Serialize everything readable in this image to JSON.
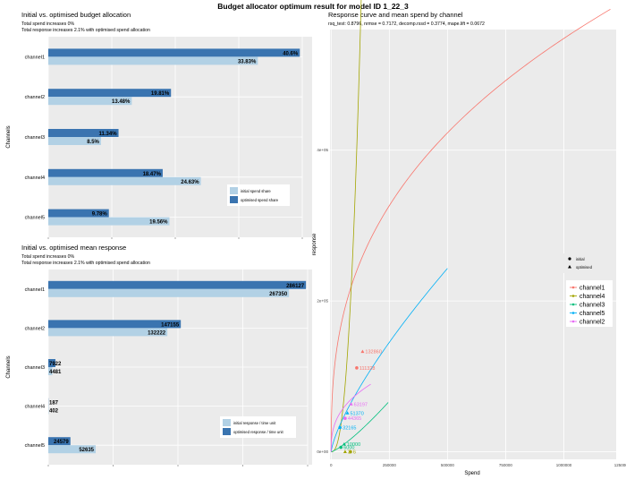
{
  "main_title": "Budget allocator optimum result for model ID 1_22_3",
  "chart_data": [
    {
      "type": "bar",
      "orientation": "horizontal",
      "title": "Initial vs. optimised budget allocation",
      "subtitle_lines": [
        "Total spend increases 0%",
        "Total response increases 2.1% with optimised spend allocation"
      ],
      "ylabel": "Channels",
      "categories": [
        "channel1",
        "channel2",
        "channel3",
        "channel4",
        "channel5"
      ],
      "series": [
        {
          "name": "initial spend share",
          "color": "#b2d1e5",
          "values": [
            33.83,
            13.48,
            8.5,
            24.63,
            19.56
          ],
          "labels": [
            "33.83%",
            "13.48%",
            "8.5%",
            "24.63%",
            "19.56%"
          ]
        },
        {
          "name": "optimised spend share",
          "color": "#3a74b0",
          "values": [
            40.6,
            19.81,
            11.34,
            18.47,
            9.78
          ],
          "labels": [
            "40.6%",
            "19.81%",
            "11.34%",
            "18.47%",
            "9.78%"
          ]
        }
      ],
      "xlim": [
        0,
        41
      ]
    },
    {
      "type": "bar",
      "orientation": "horizontal",
      "title": "Initial vs. optimised mean response",
      "subtitle_lines": [
        "Total spend increases 0%",
        "Total response increases 2.1% with optimised spend allocation"
      ],
      "ylabel": "Channels",
      "categories": [
        "channel1",
        "channel2",
        "channel3",
        "channel4",
        "channel5"
      ],
      "series": [
        {
          "name": "initial response / time unit",
          "color": "#b2d1e5",
          "values": [
            267350,
            132222,
            4481,
            402,
            52635
          ],
          "labels": [
            "267350",
            "132222",
            "4481",
            "402",
            "52635"
          ]
        },
        {
          "name": "optimised response / time unit",
          "color": "#3a74b0",
          "values": [
            286127,
            147155,
            7922,
            187,
            24579
          ],
          "labels": [
            "286127",
            "147155",
            "7922",
            "187",
            "24579"
          ]
        }
      ],
      "xlim": [
        0,
        288000
      ]
    },
    {
      "type": "line",
      "title": "Response curve and mean spend by channel",
      "subtitle": "rsq_test: 0.8796, nrmse = 0.7172, decomp.rssd = 0.3774, mape.lift = 0.0672",
      "xlabel": "Spend",
      "ylabel": "response",
      "xlim": [
        -5000,
        1225000
      ],
      "ylim": [
        -10000,
        560000
      ],
      "x_ticks": [
        0,
        250000,
        500000,
        750000,
        1000000,
        1250000
      ],
      "x_tick_labels": [
        "0",
        "250000",
        "500000",
        "750000",
        "1000000",
        "1250000"
      ],
      "y_ticks": [
        0,
        200000,
        400000
      ],
      "y_tick_labels": [
        "0e+00",
        "2e+05",
        "4e+05"
      ],
      "shape_legend": [
        "initial",
        "optimised"
      ],
      "series": [
        {
          "name": "channel1",
          "color": "#f8766d",
          "k": 3130,
          "p": 0.3739,
          "x_max": 1200000,
          "initial": {
            "x": 110000,
            "y": 111328,
            "label": "111328"
          },
          "optimised": {
            "x": 135000,
            "y": 132860,
            "label": "132860"
          }
        },
        {
          "name": "channel4",
          "color": "#a3a500",
          "k": 1e-07,
          "p": 2.5,
          "x_max": 930000,
          "initial": {
            "x": 83000,
            "y": 6,
            "label": "6"
          },
          "optimised": {
            "x": 60000,
            "y": 3,
            "label": "3"
          }
        },
        {
          "name": "channel3",
          "color": "#00bf7d",
          "k": 0.0106,
          "p": 1.26,
          "x_max": 245000,
          "initial": {
            "x": 42000,
            "y": 6000,
            "label": "6000"
          },
          "optimised": {
            "x": 56000,
            "y": 10000,
            "label": "10000"
          }
        },
        {
          "name": "channel5",
          "color": "#00b0f6",
          "k": 13.87,
          "p": 0.7447,
          "x_max": 500000,
          "initial": {
            "x": 38000,
            "y": 32165,
            "label": "32165"
          },
          "optimised": {
            "x": 70000,
            "y": 51370,
            "label": "51370"
          }
        },
        {
          "name": "channel2",
          "color": "#e76bf3",
          "k": 1040,
          "p": 0.37,
          "x_max": 170000,
          "initial": {
            "x": 60000,
            "y": 44365,
            "label": "44365"
          },
          "optimised": {
            "x": 86000,
            "y": 63197,
            "label": "63197"
          }
        }
      ]
    }
  ]
}
